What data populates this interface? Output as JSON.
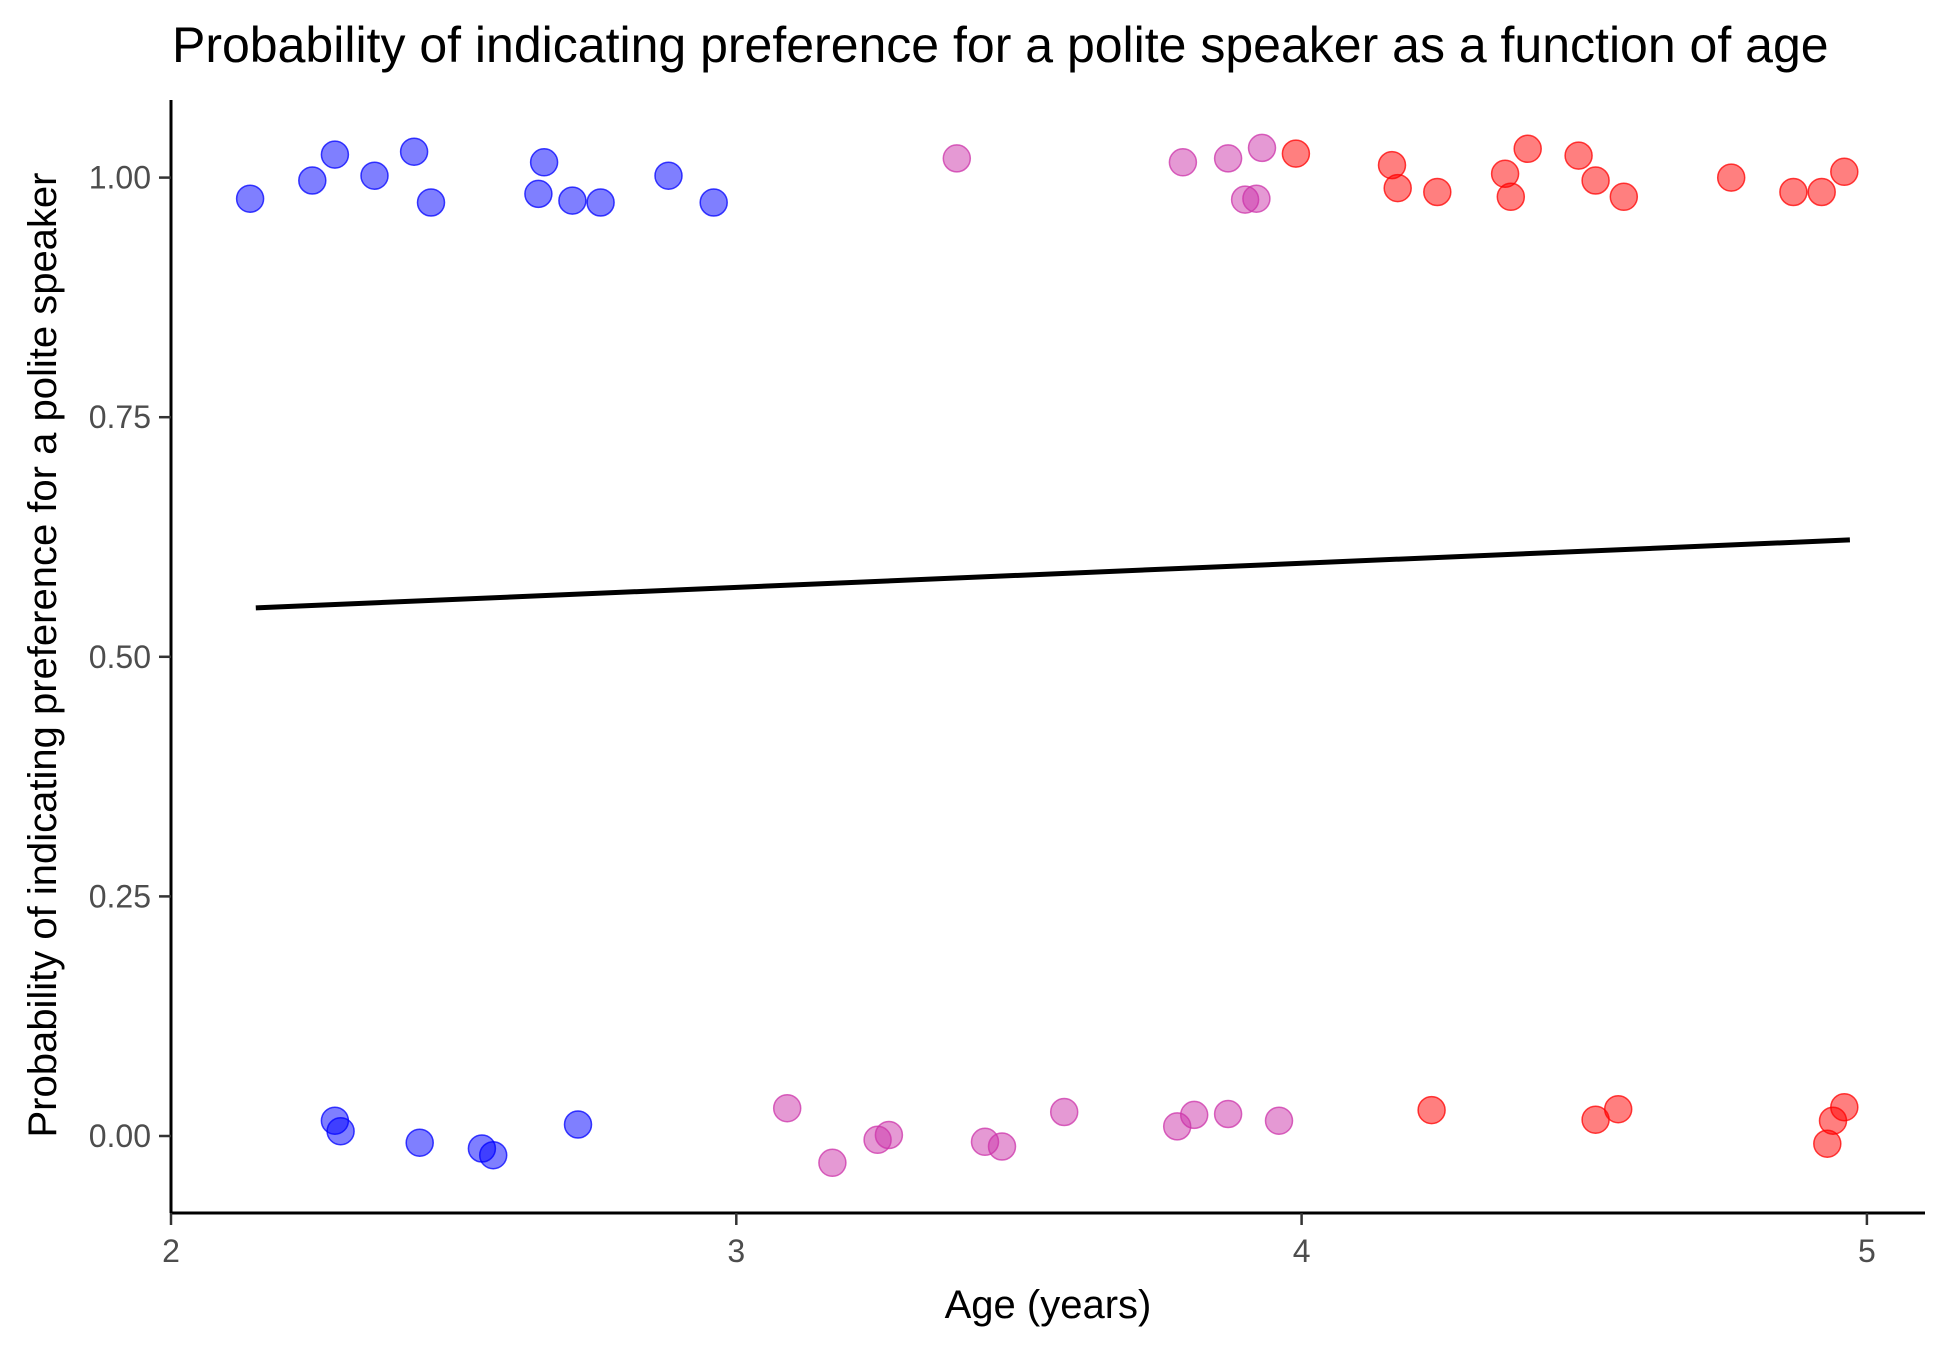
{
  "chart_data": {
    "type": "scatter",
    "title": "Probability of indicating preference for a polite speaker as a function of age",
    "xlabel": "Age (years)",
    "ylabel": "Probability of indicating preference for a polite speaker",
    "xlim": [
      2,
      5.12
    ],
    "ylim": [
      -0.08,
      1.08
    ],
    "x_ticks": [
      {
        "value": 2,
        "label": "2"
      },
      {
        "value": 3,
        "label": "3"
      },
      {
        "value": 4,
        "label": "4"
      },
      {
        "value": 5,
        "label": "5"
      }
    ],
    "y_ticks": [
      {
        "value": 0.0,
        "label": "0.00"
      },
      {
        "value": 0.25,
        "label": "0.25"
      },
      {
        "value": 0.5,
        "label": "0.50"
      },
      {
        "value": 0.75,
        "label": "0.75"
      },
      {
        "value": 1.0,
        "label": "1.00"
      }
    ],
    "grid": false,
    "legend": "none",
    "trend_line": {
      "color": "#000000",
      "points": [
        {
          "x": 2.15,
          "y": 0.551
        },
        {
          "x": 4.97,
          "y": 0.622
        }
      ]
    },
    "series": [
      {
        "color": "#0000FF",
        "points": [
          {
            "x": 2.14,
            "y": 0.978
          },
          {
            "x": 2.25,
            "y": 0.997
          },
          {
            "x": 2.29,
            "y": 1.024
          },
          {
            "x": 2.36,
            "y": 1.002
          },
          {
            "x": 2.43,
            "y": 1.027
          },
          {
            "x": 2.46,
            "y": 0.974
          },
          {
            "x": 2.65,
            "y": 0.983
          },
          {
            "x": 2.66,
            "y": 1.016
          },
          {
            "x": 2.71,
            "y": 0.976
          },
          {
            "x": 2.76,
            "y": 0.974
          },
          {
            "x": 2.88,
            "y": 1.002
          },
          {
            "x": 2.96,
            "y": 0.974
          },
          {
            "x": 2.29,
            "y": 0.016
          },
          {
            "x": 2.3,
            "y": 0.005
          },
          {
            "x": 2.44,
            "y": -0.007
          },
          {
            "x": 2.55,
            "y": -0.013
          },
          {
            "x": 2.57,
            "y": -0.02
          },
          {
            "x": 2.72,
            "y": 0.012
          }
        ]
      },
      {
        "color": "#CC33AA",
        "points": [
          {
            "x": 3.39,
            "y": 1.02
          },
          {
            "x": 3.79,
            "y": 1.016
          },
          {
            "x": 3.87,
            "y": 1.02
          },
          {
            "x": 3.9,
            "y": 0.977
          },
          {
            "x": 3.92,
            "y": 0.978
          },
          {
            "x": 3.93,
            "y": 1.031
          },
          {
            "x": 3.09,
            "y": 0.029
          },
          {
            "x": 3.17,
            "y": -0.028
          },
          {
            "x": 3.25,
            "y": -0.004
          },
          {
            "x": 3.27,
            "y": 0.001
          },
          {
            "x": 3.44,
            "y": -0.006
          },
          {
            "x": 3.47,
            "y": -0.011
          },
          {
            "x": 3.58,
            "y": 0.025
          },
          {
            "x": 3.78,
            "y": 0.01
          },
          {
            "x": 3.81,
            "y": 0.022
          },
          {
            "x": 3.87,
            "y": 0.023
          },
          {
            "x": 3.96,
            "y": 0.016
          }
        ]
      },
      {
        "color": "#FF0000",
        "points": [
          {
            "x": 3.99,
            "y": 1.025
          },
          {
            "x": 4.16,
            "y": 1.013
          },
          {
            "x": 4.17,
            "y": 0.989
          },
          {
            "x": 4.24,
            "y": 0.985
          },
          {
            "x": 4.36,
            "y": 1.004
          },
          {
            "x": 4.37,
            "y": 0.98
          },
          {
            "x": 4.4,
            "y": 1.03
          },
          {
            "x": 4.49,
            "y": 1.023
          },
          {
            "x": 4.52,
            "y": 0.997
          },
          {
            "x": 4.57,
            "y": 0.98
          },
          {
            "x": 4.76,
            "y": 1.0
          },
          {
            "x": 4.87,
            "y": 0.985
          },
          {
            "x": 4.92,
            "y": 0.985
          },
          {
            "x": 4.96,
            "y": 1.006
          },
          {
            "x": 4.23,
            "y": 0.027
          },
          {
            "x": 4.52,
            "y": 0.017
          },
          {
            "x": 4.56,
            "y": 0.028
          },
          {
            "x": 4.93,
            "y": -0.008
          },
          {
            "x": 4.94,
            "y": 0.016
          },
          {
            "x": 4.96,
            "y": 0.03
          }
        ]
      }
    ]
  }
}
